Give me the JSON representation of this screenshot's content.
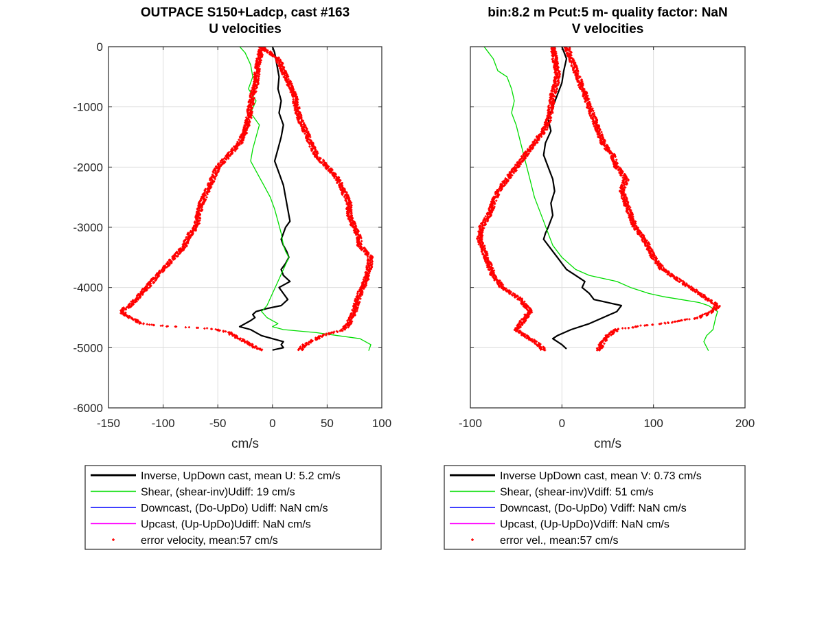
{
  "chart_data": [
    {
      "type": "line",
      "title": [
        "OUTPACE S150+Ladcp, cast #163",
        "U velocities"
      ],
      "xlabel": "cm/s",
      "ylabel": "",
      "xlim": [
        -150,
        100
      ],
      "ylim": [
        -6000,
        0
      ],
      "xticks": [
        -150,
        -100,
        -50,
        0,
        50,
        100
      ],
      "yticks": [
        0,
        -1000,
        -2000,
        -3000,
        -4000,
        -5000,
        -6000
      ],
      "grid": true,
      "legend_position": "below",
      "series": [
        {
          "name": "Inverse, UpDown cast, mean U:  5.2 cm/s",
          "color": "#000000",
          "style": "line",
          "x": [
            0,
            2,
            4,
            6,
            5,
            8,
            6,
            10,
            8,
            5,
            2,
            6,
            10,
            12,
            14,
            16,
            12,
            10,
            8,
            10,
            13,
            15,
            12,
            8,
            10,
            16,
            6,
            10,
            14,
            8,
            -5,
            -15,
            -18,
            -16,
            -20,
            -25,
            -30,
            -20,
            -15,
            -10,
            0,
            10,
            8,
            10,
            5,
            0
          ],
          "y": [
            0,
            -100,
            -300,
            -500,
            -700,
            -900,
            -1100,
            -1300,
            -1500,
            -1700,
            -1900,
            -2100,
            -2300,
            -2500,
            -2700,
            -2900,
            -3000,
            -3100,
            -3200,
            -3300,
            -3400,
            -3500,
            -3600,
            -3700,
            -3800,
            -3900,
            -4000,
            -4100,
            -4200,
            -4300,
            -4350,
            -4400,
            -4450,
            -4500,
            -4550,
            -4600,
            -4650,
            -4700,
            -4750,
            -4800,
            -4850,
            -4900,
            -4950,
            -5000,
            -5020,
            -5040
          ]
        },
        {
          "name": "Shear, (shear-inv)Udiff:  19 cm/s",
          "color": "#00dd00",
          "style": "line",
          "x": [
            -30,
            -25,
            -20,
            -18,
            -22,
            -15,
            -20,
            -12,
            -15,
            -18,
            -20,
            -14,
            -8,
            -2,
            2,
            5,
            8,
            10,
            12,
            15,
            10,
            5,
            0,
            -5,
            -10,
            -5,
            0,
            5,
            0,
            10,
            40,
            60,
            80,
            90,
            88
          ],
          "y": [
            0,
            -100,
            -300,
            -500,
            -700,
            -900,
            -1100,
            -1300,
            -1500,
            -1700,
            -1900,
            -2100,
            -2300,
            -2500,
            -2700,
            -2900,
            -3100,
            -3300,
            -3400,
            -3500,
            -3700,
            -3900,
            -4100,
            -4300,
            -4400,
            -4500,
            -4550,
            -4600,
            -4650,
            -4700,
            -4750,
            -4800,
            -4850,
            -4950,
            -5050
          ]
        },
        {
          "name": "Downcast, (Do-UpDo) Udiff:  NaN cm/s",
          "color": "#0000ff",
          "style": "line",
          "x": [],
          "y": []
        },
        {
          "name": "Upcast, (Up-UpDo)Udiff:  NaN cm/s",
          "color": "#ff00ff",
          "style": "line",
          "x": [],
          "y": []
        },
        {
          "name": "error velocity, mean:57 cm/s",
          "color": "#ff0000",
          "style": "markers",
          "left_envelope": {
            "x": [
              -10,
              -12,
              -14,
              -15,
              -18,
              -20,
              -22,
              -25,
              -30,
              -40,
              -50,
              -55,
              -60,
              -65,
              -68,
              -70,
              -75,
              -78,
              -80,
              -85,
              -90,
              -95,
              -100,
              -105,
              -110,
              -115,
              -120,
              -125,
              -130,
              -135,
              -138,
              -135,
              -130,
              -125,
              -120,
              -110,
              -100,
              -80,
              -60,
              -50,
              -40,
              -35,
              -30,
              -25,
              -20,
              -15,
              -10
            ],
            "y": [
              0,
              -200,
              -400,
              -600,
              -800,
              -1000,
              -1200,
              -1400,
              -1600,
              -1800,
              -2000,
              -2200,
              -2400,
              -2600,
              -2800,
              -3000,
              -3100,
              -3200,
              -3300,
              -3400,
              -3500,
              -3600,
              -3700,
              -3800,
              -3900,
              -4000,
              -4100,
              -4200,
              -4300,
              -4350,
              -4400,
              -4450,
              -4500,
              -4550,
              -4600,
              -4620,
              -4640,
              -4660,
              -4680,
              -4700,
              -4750,
              -4800,
              -4850,
              -4900,
              -4950,
              -5000,
              -5040
            ]
          },
          "right_envelope": {
            "x": [
              -10,
              5,
              10,
              15,
              20,
              22,
              25,
              30,
              35,
              40,
              50,
              60,
              65,
              70,
              70,
              75,
              80,
              80,
              85,
              90,
              88,
              85,
              80,
              78,
              75,
              72,
              70,
              65,
              55,
              45,
              40,
              35,
              30,
              25
            ],
            "y": [
              0,
              -200,
              -400,
              -600,
              -800,
              -1000,
              -1200,
              -1400,
              -1600,
              -1800,
              -2000,
              -2200,
              -2400,
              -2600,
              -2800,
              -3000,
              -3200,
              -3300,
              -3400,
              -3500,
              -3700,
              -3900,
              -4100,
              -4200,
              -4400,
              -4500,
              -4600,
              -4700,
              -4750,
              -4800,
              -4850,
              -4900,
              -4950,
              -5040
            ]
          }
        }
      ],
      "legend": [
        {
          "label": "Inverse, UpDown cast, mean U:  5.2 cm/s",
          "color": "#000000",
          "style": "thick"
        },
        {
          "label": "Shear, (shear-inv)Udiff:  19 cm/s",
          "color": "#00dd00",
          "style": "line"
        },
        {
          "label": "Downcast, (Do-UpDo) Udiff:  NaN cm/s",
          "color": "#0000ff",
          "style": "line"
        },
        {
          "label": "Upcast, (Up-UpDo)Udiff:  NaN cm/s",
          "color": "#ff00ff",
          "style": "line"
        },
        {
          "label": "error velocity, mean:57 cm/s",
          "color": "#ff0000",
          "style": "marker"
        }
      ]
    },
    {
      "type": "line",
      "title": [
        "bin:8.2 m  Pcut:5 m- quality factor:  NaN",
        "V velocities"
      ],
      "xlabel": "cm/s",
      "ylabel": "",
      "xlim": [
        -100,
        200
      ],
      "ylim": [
        -6000,
        0
      ],
      "xticks": [
        -100,
        0,
        100,
        200
      ],
      "yticks": [],
      "grid": true,
      "legend_position": "below",
      "series": [
        {
          "name": "Inverse UpDown cast, mean V:  0.73 cm/s",
          "color": "#000000",
          "style": "line",
          "x": [
            0,
            5,
            2,
            0,
            -5,
            -10,
            -15,
            -12,
            -18,
            -20,
            -15,
            -10,
            -8,
            -12,
            -10,
            -15,
            -18,
            -20,
            -10,
            -5,
            0,
            5,
            15,
            25,
            22,
            30,
            35,
            50,
            65,
            60,
            45,
            30,
            10,
            -5,
            -10,
            -5,
            0,
            5
          ],
          "y": [
            0,
            -200,
            -400,
            -600,
            -800,
            -1000,
            -1200,
            -1400,
            -1600,
            -1800,
            -2000,
            -2200,
            -2400,
            -2600,
            -2800,
            -3000,
            -3100,
            -3200,
            -3400,
            -3500,
            -3600,
            -3700,
            -3800,
            -3900,
            -4000,
            -4100,
            -4200,
            -4250,
            -4300,
            -4400,
            -4500,
            -4600,
            -4700,
            -4800,
            -4850,
            -4900,
            -4950,
            -5020
          ]
        },
        {
          "name": "Shear, (shear-inv)Vdiff:  51 cm/s",
          "color": "#00dd00",
          "style": "line",
          "x": [
            -85,
            -80,
            -75,
            -70,
            -60,
            -55,
            -52,
            -55,
            -50,
            -45,
            -40,
            -35,
            -30,
            -25,
            -20,
            -15,
            -10,
            0,
            15,
            30,
            45,
            60,
            75,
            95,
            110,
            130,
            150,
            160,
            170,
            168,
            165,
            158,
            155,
            160
          ],
          "y": [
            0,
            -100,
            -200,
            -400,
            -500,
            -700,
            -900,
            -1100,
            -1300,
            -1600,
            -1900,
            -2200,
            -2500,
            -2700,
            -2900,
            -3100,
            -3300,
            -3500,
            -3700,
            -3800,
            -3850,
            -3900,
            -4000,
            -4100,
            -4150,
            -4200,
            -4250,
            -4300,
            -4400,
            -4500,
            -4700,
            -4800,
            -4900,
            -5050
          ]
        },
        {
          "name": "Downcast, (Do-UpDo) Vdiff:  NaN cm/s",
          "color": "#0000ff",
          "style": "line",
          "x": [],
          "y": []
        },
        {
          "name": "Upcast, (Up-UpDo)Vdiff:  NaN cm/s",
          "color": "#ff00ff",
          "style": "line",
          "x": [],
          "y": []
        },
        {
          "name": "error vel., mean:57 cm/s",
          "color": "#ff0000",
          "style": "markers",
          "left_envelope": {
            "x": [
              -10,
              -8,
              -5,
              -6,
              -10,
              -12,
              -14,
              -20,
              -30,
              -40,
              -50,
              -60,
              -70,
              -75,
              -80,
              -88,
              -90,
              -85,
              -80,
              -75,
              -70,
              -65,
              -55,
              -45,
              -40,
              -35,
              -40,
              -45,
              -50,
              -40,
              -35,
              -30,
              -25,
              -20
            ],
            "y": [
              0,
              -200,
              -400,
              -600,
              -800,
              -1000,
              -1200,
              -1400,
              -1600,
              -1800,
              -2000,
              -2200,
              -2400,
              -2600,
              -2800,
              -3000,
              -3200,
              -3400,
              -3600,
              -3800,
              -3900,
              -4000,
              -4100,
              -4200,
              -4300,
              -4400,
              -4500,
              -4600,
              -4700,
              -4800,
              -4850,
              -4900,
              -4950,
              -5040
            ]
          },
          "right_envelope": {
            "x": [
              5,
              10,
              15,
              20,
              25,
              30,
              35,
              40,
              45,
              55,
              60,
              70,
              65,
              70,
              75,
              80,
              90,
              100,
              110,
              120,
              130,
              140,
              150,
              160,
              170,
              165,
              150,
              130,
              110,
              80,
              60,
              50,
              45,
              40
            ],
            "y": [
              0,
              -200,
              -400,
              -600,
              -800,
              -1000,
              -1200,
              -1400,
              -1600,
              -1800,
              -2000,
              -2200,
              -2400,
              -2600,
              -2800,
              -3000,
              -3200,
              -3500,
              -3700,
              -3800,
              -3900,
              -4000,
              -4100,
              -4200,
              -4300,
              -4400,
              -4500,
              -4550,
              -4600,
              -4650,
              -4700,
              -4800,
              -4900,
              -5040
            ]
          }
        }
      ],
      "legend": [
        {
          "label": "Inverse UpDown cast, mean V:  0.73 cm/s",
          "color": "#000000",
          "style": "thick"
        },
        {
          "label": "Shear, (shear-inv)Vdiff:  51 cm/s",
          "color": "#00dd00",
          "style": "line"
        },
        {
          "label": "Downcast, (Do-UpDo) Vdiff:  NaN cm/s",
          "color": "#0000ff",
          "style": "line"
        },
        {
          "label": "Upcast, (Up-UpDo)Vdiff:  NaN cm/s",
          "color": "#ff00ff",
          "style": "line"
        },
        {
          "label": "error vel., mean:57 cm/s",
          "color": "#ff0000",
          "style": "marker"
        }
      ]
    }
  ]
}
